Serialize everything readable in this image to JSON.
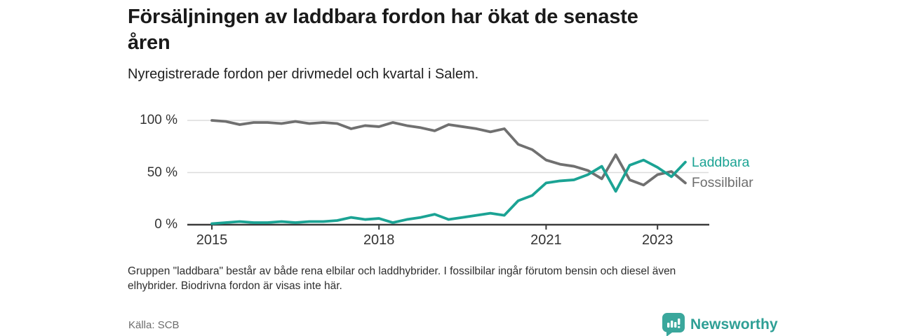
{
  "header": {
    "title_lines": [
      "Försäljningen av laddbara fordon har ökat de senaste",
      "åren"
    ],
    "subtitle": "Nyregistrerade fordon per drivmedel och kvartal i Salem."
  },
  "chart_data": {
    "type": "line",
    "title": "Försäljningen av laddbara fordon har ökat de senaste åren",
    "subtitle": "Nyregistrerade fordon per drivmedel och kvartal i Salem.",
    "unit": "%",
    "categories": [
      "2015 K1",
      "2015 K2",
      "2015 K3",
      "2015 K4",
      "2016 K1",
      "2016 K2",
      "2016 K3",
      "2016 K4",
      "2017 K1",
      "2017 K2",
      "2017 K3",
      "2017 K4",
      "2018 K1",
      "2018 K2",
      "2018 K3",
      "2018 K4",
      "2019 K1",
      "2019 K2",
      "2019 K3",
      "2019 K4",
      "2020 K1",
      "2020 K2",
      "2020 K3",
      "2020 K4",
      "2021 K1",
      "2021 K2",
      "2021 K3",
      "2021 K4",
      "2022 K1",
      "2022 K2",
      "2022 K3",
      "2022 K4",
      "2023 K1",
      "2023 K2",
      "2023 K3"
    ],
    "series": [
      {
        "name": "Laddbara",
        "color": "#1ba394",
        "values": [
          1,
          2,
          3,
          2,
          2,
          3,
          2,
          3,
          3,
          4,
          7,
          5,
          6,
          2,
          5,
          7,
          10,
          5,
          7,
          9,
          11,
          9,
          23,
          28,
          40,
          42,
          43,
          48,
          56,
          32,
          57,
          62,
          55,
          46,
          60
        ]
      },
      {
        "name": "Fossilbilar",
        "color": "#707070",
        "label_color": "#6e6e6e",
        "values": [
          100,
          99,
          96,
          98,
          98,
          97,
          99,
          97,
          98,
          97,
          92,
          95,
          94,
          98,
          95,
          93,
          90,
          96,
          94,
          92,
          89,
          92,
          77,
          72,
          62,
          58,
          56,
          52,
          44,
          67,
          43,
          38,
          48,
          51,
          40
        ]
      }
    ],
    "ylim": [
      0,
      100
    ],
    "yticks": [
      {
        "value": 0,
        "label": "0 %"
      },
      {
        "value": 50,
        "label": "50 %"
      },
      {
        "value": 100,
        "label": "100 %"
      }
    ],
    "xticks": [
      {
        "index": 0,
        "label": "2015"
      },
      {
        "index": 12,
        "label": "2018"
      },
      {
        "index": 24,
        "label": "2021"
      },
      {
        "index": 32,
        "label": "2023"
      }
    ],
    "grid": "horizontal",
    "legend_position": "line-end-right"
  },
  "footer": {
    "footnote_lines": [
      "Gruppen \"laddbara\" består av både rena elbilar och laddhybrider. I fossilbilar ingår förutom bensin och diesel även",
      "elhybrider. Biodrivna fordon är visas inte här."
    ],
    "source": "Källa: SCB",
    "brand": "Newsworthy"
  },
  "colors": {
    "accent_teal": "#1ba394",
    "line_gray": "#707070",
    "grid": "#dcdcdc",
    "axis": "#3b3b3b",
    "brand_teal": "#3aa79c"
  }
}
